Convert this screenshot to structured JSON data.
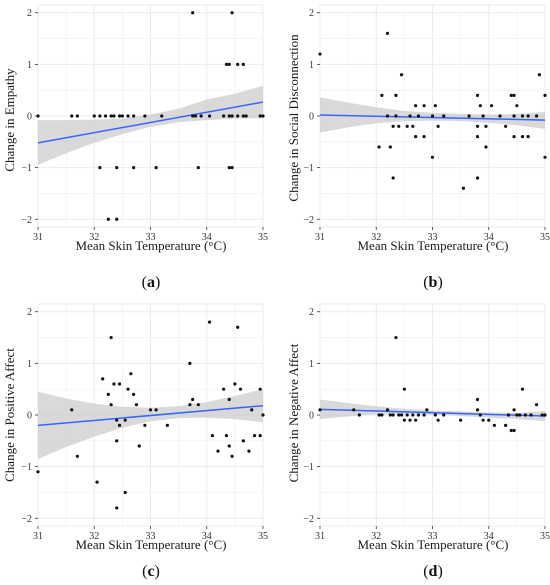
{
  "colors": {
    "panel_bg": "#ffffff",
    "grid": "#ebebeb",
    "point": "#111111",
    "fit_line": "#3366ff",
    "ribbon": "#cccccc",
    "axis_text": "#333333"
  },
  "chart_data": [
    {
      "type": "scatter",
      "panel_label": "a",
      "xlabel": "Mean Skin Temperature (°C)",
      "ylabel": "Change in Empathy",
      "xlim": [
        31,
        35
      ],
      "ylim": [
        -2.15,
        2.15
      ],
      "xticks": [
        31,
        32,
        33,
        34,
        35
      ],
      "yticks": [
        -2,
        -1,
        0,
        1,
        2
      ],
      "grid": true,
      "points": [
        [
          31.0,
          0
        ],
        [
          31.6,
          0
        ],
        [
          31.7,
          0
        ],
        [
          32.0,
          0
        ],
        [
          32.1,
          0
        ],
        [
          32.2,
          0
        ],
        [
          32.3,
          0
        ],
        [
          32.35,
          0
        ],
        [
          32.45,
          0
        ],
        [
          32.5,
          0
        ],
        [
          32.6,
          0
        ],
        [
          32.7,
          0
        ],
        [
          32.9,
          0
        ],
        [
          33.2,
          0
        ],
        [
          33.75,
          0
        ],
        [
          33.8,
          0
        ],
        [
          33.9,
          0
        ],
        [
          34.05,
          0
        ],
        [
          34.3,
          0
        ],
        [
          34.4,
          0
        ],
        [
          34.45,
          0
        ],
        [
          34.55,
          0
        ],
        [
          34.65,
          0
        ],
        [
          34.7,
          0
        ],
        [
          34.95,
          0
        ],
        [
          35.0,
          0
        ],
        [
          32.1,
          -1
        ],
        [
          32.4,
          -1
        ],
        [
          32.7,
          -1
        ],
        [
          33.1,
          -1
        ],
        [
          33.85,
          -1
        ],
        [
          34.4,
          -1
        ],
        [
          34.45,
          -1
        ],
        [
          32.25,
          -2
        ],
        [
          32.4,
          -2
        ],
        [
          34.35,
          1
        ],
        [
          34.4,
          1
        ],
        [
          34.55,
          1
        ],
        [
          34.65,
          1
        ],
        [
          33.75,
          2
        ],
        [
          34.45,
          2
        ]
      ],
      "fit": {
        "x": [
          31,
          35
        ],
        "y": [
          -0.52,
          0.27
        ]
      },
      "ribbon": {
        "x": [
          31.0,
          31.5,
          32.0,
          32.5,
          33.0,
          33.5,
          34.0,
          34.5,
          35.0
        ],
        "lower": [
          -0.95,
          -0.72,
          -0.52,
          -0.35,
          -0.21,
          -0.12,
          -0.08,
          -0.05,
          -0.04
        ],
        "upper": [
          -0.08,
          -0.08,
          -0.07,
          -0.05,
          0.03,
          0.14,
          0.32,
          0.43,
          0.58
        ]
      }
    },
    {
      "type": "scatter",
      "panel_label": "b",
      "xlabel": "Mean Skin Temperature (°C)",
      "ylabel": "Change in Social Disconnection",
      "xlim": [
        31,
        35
      ],
      "ylim": [
        -2.15,
        2.15
      ],
      "xticks": [
        31,
        32,
        33,
        34,
        35
      ],
      "yticks": [
        -2,
        -1,
        0,
        1,
        2
      ],
      "grid": true,
      "points": [
        [
          31.0,
          1.2
        ],
        [
          32.2,
          1.6
        ],
        [
          32.45,
          0.8
        ],
        [
          32.1,
          0.4
        ],
        [
          32.35,
          0.4
        ],
        [
          33.8,
          0.4
        ],
        [
          34.4,
          0.4
        ],
        [
          34.45,
          0.4
        ],
        [
          34.9,
          0.8
        ],
        [
          32.7,
          0.2
        ],
        [
          32.85,
          0.2
        ],
        [
          33.05,
          0.2
        ],
        [
          33.85,
          0.2
        ],
        [
          34.05,
          0.2
        ],
        [
          34.5,
          0.2
        ],
        [
          35.0,
          0.4
        ],
        [
          32.2,
          0
        ],
        [
          32.35,
          0
        ],
        [
          32.6,
          0
        ],
        [
          32.75,
          0
        ],
        [
          33.0,
          0
        ],
        [
          33.2,
          0
        ],
        [
          33.65,
          0
        ],
        [
          33.9,
          0
        ],
        [
          34.2,
          0
        ],
        [
          34.45,
          0
        ],
        [
          34.6,
          0
        ],
        [
          34.7,
          0
        ],
        [
          34.85,
          0
        ],
        [
          32.3,
          -0.2
        ],
        [
          32.4,
          -0.2
        ],
        [
          32.55,
          -0.2
        ],
        [
          32.65,
          -0.2
        ],
        [
          33.1,
          -0.2
        ],
        [
          33.8,
          -0.2
        ],
        [
          33.95,
          -0.2
        ],
        [
          34.3,
          -0.2
        ],
        [
          32.7,
          -0.4
        ],
        [
          32.85,
          -0.4
        ],
        [
          33.8,
          -0.4
        ],
        [
          34.45,
          -0.4
        ],
        [
          34.6,
          -0.4
        ],
        [
          34.7,
          -0.4
        ],
        [
          32.05,
          -0.6
        ],
        [
          32.25,
          -0.6
        ],
        [
          33.95,
          -0.6
        ],
        [
          33.0,
          -0.8
        ],
        [
          35.0,
          -0.8
        ],
        [
          32.3,
          -1.2
        ],
        [
          33.8,
          -1.2
        ],
        [
          33.55,
          -1.4
        ]
      ],
      "fit": {
        "x": [
          31,
          35
        ],
        "y": [
          0.02,
          -0.08
        ]
      },
      "ribbon": {
        "x": [
          31.0,
          31.5,
          32.0,
          32.5,
          33.0,
          33.5,
          34.0,
          34.5,
          35.0
        ],
        "lower": [
          -0.32,
          -0.22,
          -0.14,
          -0.1,
          -0.09,
          -0.1,
          -0.13,
          -0.18,
          -0.25
        ],
        "upper": [
          0.36,
          0.26,
          0.17,
          0.1,
          0.06,
          0.04,
          0.03,
          0.04,
          0.08
        ]
      }
    },
    {
      "type": "scatter",
      "panel_label": "c",
      "xlabel": "Mean Skin Temperature (°C)",
      "ylabel": "Change in Positive Affect",
      "xlim": [
        31,
        35
      ],
      "ylim": [
        -2.15,
        2.15
      ],
      "xticks": [
        31,
        32,
        33,
        34,
        35
      ],
      "yticks": [
        -2,
        -1,
        0,
        1,
        2
      ],
      "grid": true,
      "points": [
        [
          31.0,
          -1.1
        ],
        [
          31.6,
          0.1
        ],
        [
          31.7,
          -0.8
        ],
        [
          32.05,
          -1.3
        ],
        [
          32.15,
          0.7
        ],
        [
          32.25,
          0.4
        ],
        [
          32.3,
          1.5
        ],
        [
          32.35,
          0.6
        ],
        [
          32.45,
          0.6
        ],
        [
          32.3,
          0.2
        ],
        [
          32.4,
          -0.1
        ],
        [
          32.45,
          -0.2
        ],
        [
          32.55,
          -0.1
        ],
        [
          32.6,
          0.5
        ],
        [
          32.65,
          0.8
        ],
        [
          32.7,
          0.4
        ],
        [
          32.75,
          0.2
        ],
        [
          32.4,
          -0.5
        ],
        [
          32.55,
          -1.5
        ],
        [
          32.4,
          -1.8
        ],
        [
          32.8,
          -0.6
        ],
        [
          32.9,
          -0.2
        ],
        [
          33.0,
          0.1
        ],
        [
          33.1,
          0.1
        ],
        [
          33.3,
          -0.2
        ],
        [
          33.7,
          1.0
        ],
        [
          33.7,
          0.2
        ],
        [
          33.75,
          0.3
        ],
        [
          33.85,
          0.2
        ],
        [
          34.05,
          1.8
        ],
        [
          34.1,
          -0.4
        ],
        [
          34.2,
          -0.7
        ],
        [
          34.3,
          0.5
        ],
        [
          34.35,
          -0.4
        ],
        [
          34.4,
          0.3
        ],
        [
          34.4,
          -0.6
        ],
        [
          34.45,
          -0.8
        ],
        [
          34.5,
          0.6
        ],
        [
          34.55,
          1.7
        ],
        [
          34.6,
          0.5
        ],
        [
          34.65,
          -0.5
        ],
        [
          34.75,
          -0.7
        ],
        [
          34.8,
          0.1
        ],
        [
          34.85,
          -0.4
        ],
        [
          34.95,
          0.5
        ],
        [
          35.0,
          0.0
        ],
        [
          34.95,
          -0.4
        ]
      ],
      "fit": {
        "x": [
          31,
          35
        ],
        "y": [
          -0.2,
          0.18
        ]
      },
      "ribbon": {
        "x": [
          31.0,
          31.5,
          32.0,
          32.5,
          33.0,
          33.5,
          34.0,
          34.5,
          35.0
        ],
        "lower": [
          -0.85,
          -0.62,
          -0.42,
          -0.25,
          -0.12,
          -0.06,
          -0.05,
          -0.08,
          -0.14
        ],
        "upper": [
          0.45,
          0.32,
          0.22,
          0.16,
          0.14,
          0.17,
          0.25,
          0.37,
          0.5
        ]
      }
    },
    {
      "type": "scatter",
      "panel_label": "d",
      "xlabel": "Mean Skin Temperature (°C)",
      "ylabel": "Change in Negative Affect",
      "xlim": [
        31,
        35
      ],
      "ylim": [
        -2.15,
        2.15
      ],
      "xticks": [
        31,
        32,
        33,
        34,
        35
      ],
      "yticks": [
        -2,
        -1,
        0,
        1,
        2
      ],
      "grid": true,
      "points": [
        [
          31.0,
          0.1
        ],
        [
          31.6,
          0.1
        ],
        [
          31.7,
          0.0
        ],
        [
          32.05,
          0.0
        ],
        [
          32.1,
          0.0
        ],
        [
          32.2,
          0.1
        ],
        [
          32.25,
          0.0
        ],
        [
          32.3,
          0.0
        ],
        [
          32.35,
          1.5
        ],
        [
          32.4,
          0.0
        ],
        [
          32.45,
          0.0
        ],
        [
          32.5,
          0.5
        ],
        [
          32.5,
          -0.1
        ],
        [
          32.55,
          0.0
        ],
        [
          32.6,
          -0.1
        ],
        [
          32.65,
          0.0
        ],
        [
          32.7,
          -0.1
        ],
        [
          32.75,
          0.0
        ],
        [
          32.85,
          0.0
        ],
        [
          32.9,
          0.1
        ],
        [
          33.05,
          0.0
        ],
        [
          33.1,
          -0.1
        ],
        [
          33.2,
          0.0
        ],
        [
          33.5,
          -0.1
        ],
        [
          33.8,
          0.3
        ],
        [
          33.8,
          0.1
        ],
        [
          33.85,
          0.0
        ],
        [
          33.9,
          -0.1
        ],
        [
          34.0,
          -0.1
        ],
        [
          34.1,
          -0.2
        ],
        [
          34.3,
          -0.2
        ],
        [
          34.35,
          0.0
        ],
        [
          34.4,
          -0.3
        ],
        [
          34.45,
          0.1
        ],
        [
          34.45,
          -0.3
        ],
        [
          34.5,
          0.0
        ],
        [
          34.55,
          0.0
        ],
        [
          34.6,
          0.5
        ],
        [
          34.65,
          0.0
        ],
        [
          34.75,
          0.0
        ],
        [
          34.85,
          0.2
        ],
        [
          34.95,
          0.0
        ],
        [
          35.0,
          0.0
        ]
      ],
      "fit": {
        "x": [
          31,
          35
        ],
        "y": [
          0.11,
          -0.02
        ]
      },
      "ribbon": {
        "x": [
          31.0,
          31.5,
          32.0,
          32.5,
          33.0,
          33.5,
          34.0,
          34.5,
          35.0
        ],
        "lower": [
          -0.08,
          -0.03,
          0.01,
          0.02,
          0.01,
          -0.02,
          -0.05,
          -0.08,
          -0.12
        ],
        "upper": [
          0.3,
          0.23,
          0.17,
          0.12,
          0.09,
          0.07,
          0.05,
          0.04,
          0.08
        ]
      }
    }
  ]
}
